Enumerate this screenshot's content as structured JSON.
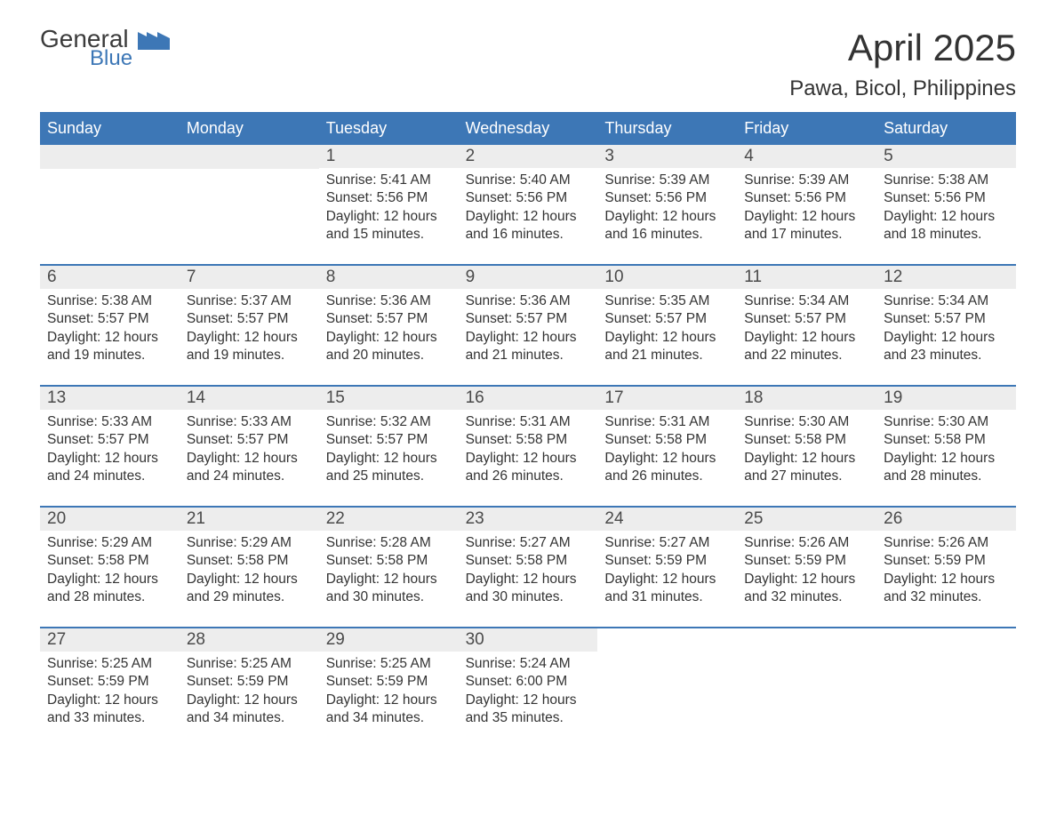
{
  "logo": {
    "general": "General",
    "blue": "Blue",
    "flag_color": "#3d77b6"
  },
  "title": "April 2025",
  "subtitle": "Pawa, Bicol, Philippines",
  "colors": {
    "header_bg": "#3d77b6",
    "header_text": "#ffffff",
    "band_bg": "#ededed",
    "text": "#333333",
    "rule": "#3d77b6",
    "page_bg": "#ffffff"
  },
  "layout": {
    "columns": 7,
    "rows": 5,
    "day_label_fontsize": 18,
    "daynum_fontsize": 19,
    "body_fontsize": 15.5
  },
  "dow": [
    "Sunday",
    "Monday",
    "Tuesday",
    "Wednesday",
    "Thursday",
    "Friday",
    "Saturday"
  ],
  "weeks": [
    [
      {
        "blank": true
      },
      {
        "blank": true
      },
      {
        "n": "1",
        "sunrise": "5:41 AM",
        "sunset": "5:56 PM",
        "dl1": "Daylight: 12 hours",
        "dl2": "and 15 minutes."
      },
      {
        "n": "2",
        "sunrise": "5:40 AM",
        "sunset": "5:56 PM",
        "dl1": "Daylight: 12 hours",
        "dl2": "and 16 minutes."
      },
      {
        "n": "3",
        "sunrise": "5:39 AM",
        "sunset": "5:56 PM",
        "dl1": "Daylight: 12 hours",
        "dl2": "and 16 minutes."
      },
      {
        "n": "4",
        "sunrise": "5:39 AM",
        "sunset": "5:56 PM",
        "dl1": "Daylight: 12 hours",
        "dl2": "and 17 minutes."
      },
      {
        "n": "5",
        "sunrise": "5:38 AM",
        "sunset": "5:56 PM",
        "dl1": "Daylight: 12 hours",
        "dl2": "and 18 minutes."
      }
    ],
    [
      {
        "n": "6",
        "sunrise": "5:38 AM",
        "sunset": "5:57 PM",
        "dl1": "Daylight: 12 hours",
        "dl2": "and 19 minutes."
      },
      {
        "n": "7",
        "sunrise": "5:37 AM",
        "sunset": "5:57 PM",
        "dl1": "Daylight: 12 hours",
        "dl2": "and 19 minutes."
      },
      {
        "n": "8",
        "sunrise": "5:36 AM",
        "sunset": "5:57 PM",
        "dl1": "Daylight: 12 hours",
        "dl2": "and 20 minutes."
      },
      {
        "n": "9",
        "sunrise": "5:36 AM",
        "sunset": "5:57 PM",
        "dl1": "Daylight: 12 hours",
        "dl2": "and 21 minutes."
      },
      {
        "n": "10",
        "sunrise": "5:35 AM",
        "sunset": "5:57 PM",
        "dl1": "Daylight: 12 hours",
        "dl2": "and 21 minutes."
      },
      {
        "n": "11",
        "sunrise": "5:34 AM",
        "sunset": "5:57 PM",
        "dl1": "Daylight: 12 hours",
        "dl2": "and 22 minutes."
      },
      {
        "n": "12",
        "sunrise": "5:34 AM",
        "sunset": "5:57 PM",
        "dl1": "Daylight: 12 hours",
        "dl2": "and 23 minutes."
      }
    ],
    [
      {
        "n": "13",
        "sunrise": "5:33 AM",
        "sunset": "5:57 PM",
        "dl1": "Daylight: 12 hours",
        "dl2": "and 24 minutes."
      },
      {
        "n": "14",
        "sunrise": "5:33 AM",
        "sunset": "5:57 PM",
        "dl1": "Daylight: 12 hours",
        "dl2": "and 24 minutes."
      },
      {
        "n": "15",
        "sunrise": "5:32 AM",
        "sunset": "5:57 PM",
        "dl1": "Daylight: 12 hours",
        "dl2": "and 25 minutes."
      },
      {
        "n": "16",
        "sunrise": "5:31 AM",
        "sunset": "5:58 PM",
        "dl1": "Daylight: 12 hours",
        "dl2": "and 26 minutes."
      },
      {
        "n": "17",
        "sunrise": "5:31 AM",
        "sunset": "5:58 PM",
        "dl1": "Daylight: 12 hours",
        "dl2": "and 26 minutes."
      },
      {
        "n": "18",
        "sunrise": "5:30 AM",
        "sunset": "5:58 PM",
        "dl1": "Daylight: 12 hours",
        "dl2": "and 27 minutes."
      },
      {
        "n": "19",
        "sunrise": "5:30 AM",
        "sunset": "5:58 PM",
        "dl1": "Daylight: 12 hours",
        "dl2": "and 28 minutes."
      }
    ],
    [
      {
        "n": "20",
        "sunrise": "5:29 AM",
        "sunset": "5:58 PM",
        "dl1": "Daylight: 12 hours",
        "dl2": "and 28 minutes."
      },
      {
        "n": "21",
        "sunrise": "5:29 AM",
        "sunset": "5:58 PM",
        "dl1": "Daylight: 12 hours",
        "dl2": "and 29 minutes."
      },
      {
        "n": "22",
        "sunrise": "5:28 AM",
        "sunset": "5:58 PM",
        "dl1": "Daylight: 12 hours",
        "dl2": "and 30 minutes."
      },
      {
        "n": "23",
        "sunrise": "5:27 AM",
        "sunset": "5:58 PM",
        "dl1": "Daylight: 12 hours",
        "dl2": "and 30 minutes."
      },
      {
        "n": "24",
        "sunrise": "5:27 AM",
        "sunset": "5:59 PM",
        "dl1": "Daylight: 12 hours",
        "dl2": "and 31 minutes."
      },
      {
        "n": "25",
        "sunrise": "5:26 AM",
        "sunset": "5:59 PM",
        "dl1": "Daylight: 12 hours",
        "dl2": "and 32 minutes."
      },
      {
        "n": "26",
        "sunrise": "5:26 AM",
        "sunset": "5:59 PM",
        "dl1": "Daylight: 12 hours",
        "dl2": "and 32 minutes."
      }
    ],
    [
      {
        "n": "27",
        "sunrise": "5:25 AM",
        "sunset": "5:59 PM",
        "dl1": "Daylight: 12 hours",
        "dl2": "and 33 minutes."
      },
      {
        "n": "28",
        "sunrise": "5:25 AM",
        "sunset": "5:59 PM",
        "dl1": "Daylight: 12 hours",
        "dl2": "and 34 minutes."
      },
      {
        "n": "29",
        "sunrise": "5:25 AM",
        "sunset": "5:59 PM",
        "dl1": "Daylight: 12 hours",
        "dl2": "and 34 minutes."
      },
      {
        "n": "30",
        "sunrise": "5:24 AM",
        "sunset": "6:00 PM",
        "dl1": "Daylight: 12 hours",
        "dl2": "and 35 minutes."
      },
      {
        "blank": true,
        "noband": true
      },
      {
        "blank": true,
        "noband": true
      },
      {
        "blank": true,
        "noband": true
      }
    ]
  ],
  "labels": {
    "sunrise_prefix": "Sunrise: ",
    "sunset_prefix": "Sunset: "
  }
}
